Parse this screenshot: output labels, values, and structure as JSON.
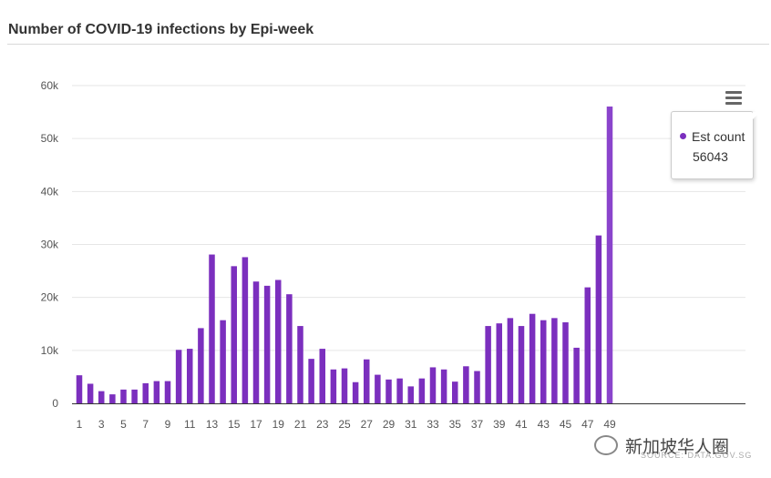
{
  "header": {
    "title": "Number of COVID-19 infections by Epi-week"
  },
  "tooltip": {
    "series_name": "Est count",
    "value": "56043",
    "dot_color": "#7b2fbe"
  },
  "menu": {
    "icon": "hamburger-menu-icon"
  },
  "watermark": {
    "text": "新加坡华人圈",
    "icon": "wechat-icon"
  },
  "source": {
    "text": "SOURCE: DATA.GOV.SG"
  },
  "chart_data": {
    "type": "bar",
    "title": "Number of COVID-19 infections by Epi-week",
    "xlabel": "",
    "ylabel": "",
    "ylim": [
      0,
      60000
    ],
    "yticks": [
      0,
      10000,
      20000,
      30000,
      40000,
      50000,
      60000
    ],
    "ytick_labels": [
      "0",
      "10k",
      "20k",
      "30k",
      "40k",
      "50k",
      "60k"
    ],
    "categories": [
      1,
      2,
      3,
      4,
      5,
      6,
      7,
      8,
      9,
      10,
      11,
      12,
      13,
      14,
      15,
      16,
      17,
      18,
      19,
      20,
      21,
      22,
      23,
      24,
      25,
      26,
      27,
      28,
      29,
      30,
      31,
      32,
      33,
      34,
      35,
      36,
      37,
      38,
      39,
      40,
      41,
      42,
      43,
      44,
      45,
      46,
      47,
      48,
      49
    ],
    "xtick_labels": [
      "1",
      "3",
      "5",
      "7",
      "9",
      "11",
      "13",
      "15",
      "17",
      "19",
      "21",
      "23",
      "25",
      "27",
      "29",
      "31",
      "33",
      "35",
      "37",
      "39",
      "41",
      "43",
      "45",
      "47",
      "49"
    ],
    "series": [
      {
        "name": "Est count",
        "color": "#7b2fbe",
        "values": [
          5300,
          3700,
          2300,
          1700,
          2600,
          2600,
          3800,
          4200,
          4200,
          10100,
          10300,
          14200,
          28100,
          15700,
          25900,
          27600,
          23000,
          22200,
          23300,
          20600,
          14600,
          8400,
          10300,
          6400,
          6600,
          4000,
          8300,
          5400,
          4500,
          4700,
          3200,
          4700,
          6800,
          6400,
          4100,
          7000,
          6100,
          14600,
          15100,
          16100,
          14600,
          16900,
          15700,
          16100,
          15300,
          10500,
          21900,
          31700,
          56043
        ]
      }
    ],
    "grid": true,
    "legend": "none"
  }
}
